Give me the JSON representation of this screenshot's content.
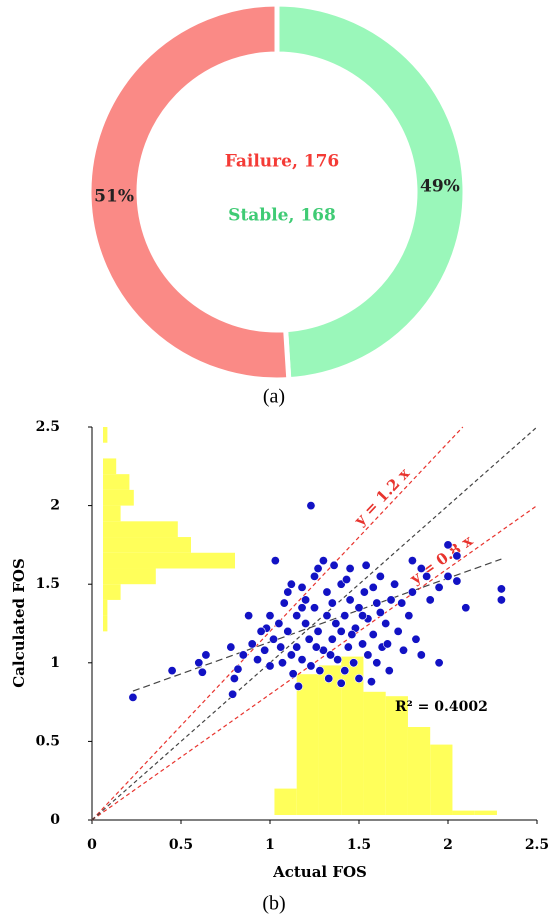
{
  "chart_data": [
    {
      "type": "pie",
      "donut": true,
      "panel_label": "(a)",
      "categories": [
        "Failure",
        "Stable"
      ],
      "values": [
        51,
        49
      ],
      "value_labels": [
        "51%",
        "49%"
      ],
      "colors": [
        "#fa8a86",
        "#9af7ba"
      ],
      "center_labels": [
        "Failure, 176",
        "Stable, 168"
      ],
      "center_label_colors": [
        "#f43b36",
        "#3fcb74"
      ]
    },
    {
      "type": "scatter",
      "panel_label": "(b)",
      "x_label": "Actual FOS",
      "y_label": "Calculated FOS",
      "xlim": [
        0,
        2.5
      ],
      "ylim": [
        0,
        2.5
      ],
      "xticks": [
        0,
        0.5,
        1,
        1.5,
        2,
        2.5
      ],
      "yticks": [
        0,
        0.5,
        1,
        1.5,
        2,
        2.5
      ],
      "color": "#1212c4",
      "x": [
        0.23,
        0.45,
        0.6,
        0.62,
        0.64,
        0.79,
        0.8,
        0.82,
        0.78,
        0.85,
        0.9,
        0.88,
        0.93,
        0.97,
        1.0,
        1.02,
        1.03,
        1.05,
        1.07,
        1.08,
        1.1,
        1.1,
        1.12,
        1.13,
        1.15,
        1.15,
        1.16,
        1.18,
        1.18,
        1.2,
        1.2,
        1.22,
        1.23,
        1.23,
        1.25,
        1.25,
        1.27,
        1.28,
        1.3,
        1.3,
        1.32,
        1.32,
        1.33,
        1.35,
        1.35,
        1.37,
        1.38,
        1.4,
        1.4,
        1.42,
        1.42,
        1.44,
        1.45,
        1.45,
        1.47,
        1.48,
        1.5,
        1.5,
        1.52,
        1.53,
        1.55,
        1.55,
        1.57,
        1.58,
        1.6,
        1.6,
        1.62,
        1.63,
        1.65,
        1.67,
        1.68,
        1.7,
        1.72,
        1.75,
        1.78,
        1.8,
        1.8,
        1.82,
        1.85,
        1.85,
        1.88,
        1.9,
        1.95,
        1.95,
        2.0,
        2.0,
        2.05,
        2.05,
        2.1,
        2.3,
        2.3,
        1.12,
        1.06,
        0.98,
        1.27,
        1.36,
        1.46,
        1.52,
        1.58,
        1.66,
        1.74,
        1.4,
        1.26,
        1.34,
        1.18,
        1.43,
        1.0,
        0.95,
        1.54,
        1.62
      ],
      "values": [
        0.78,
        0.95,
        1.0,
        0.94,
        1.05,
        0.8,
        0.9,
        0.96,
        1.1,
        1.05,
        1.12,
        1.3,
        1.02,
        1.08,
        0.98,
        1.15,
        1.65,
        1.25,
        1.0,
        1.38,
        1.2,
        1.45,
        1.05,
        0.93,
        1.3,
        1.1,
        0.85,
        1.48,
        1.02,
        1.25,
        1.4,
        1.15,
        2.0,
        0.98,
        1.35,
        1.55,
        1.2,
        0.95,
        1.65,
        1.08,
        1.3,
        1.45,
        0.9,
        1.15,
        1.38,
        1.25,
        1.02,
        1.5,
        1.2,
        0.95,
        1.3,
        1.1,
        1.6,
        1.4,
        1.0,
        1.22,
        1.35,
        0.9,
        1.12,
        1.45,
        1.05,
        1.28,
        0.88,
        1.18,
        1.38,
        1.0,
        1.55,
        1.1,
        1.25,
        0.95,
        1.4,
        1.5,
        1.2,
        1.08,
        1.3,
        1.65,
        1.45,
        1.15,
        1.6,
        1.05,
        1.55,
        1.4,
        1.48,
        1.0,
        1.75,
        1.55,
        1.68,
        1.52,
        1.35,
        1.47,
        1.4,
        1.5,
        1.1,
        1.22,
        1.6,
        1.62,
        1.18,
        1.3,
        1.48,
        1.12,
        1.38,
        0.87,
        1.1,
        1.05,
        1.35,
        1.53,
        1.3,
        1.2,
        1.62,
        1.32
      ],
      "ref_lines": [
        {
          "slope": 1.2,
          "label": "y = 1.2 x",
          "color": "#e8342e"
        },
        {
          "slope": 0.8,
          "label": "y = 0.8 x",
          "color": "#e8342e"
        },
        {
          "slope": 1,
          "color": "#444444"
        }
      ],
      "trend": {
        "x": [
          0.23,
          2.3
        ],
        "values": [
          0.82,
          1.66
        ],
        "color": "#444444"
      },
      "annotation": "R² = 0.4002",
      "histograms": [
        {
          "axis": "y",
          "color": "#ffff5a",
          "bins": [
            1.2,
            1.3,
            1.4,
            1.5,
            1.6,
            1.7,
            1.8,
            1.9,
            2.0,
            2.1,
            2.2,
            2.3,
            2.4,
            2.5
          ],
          "counts": [
            1,
            1,
            4,
            12,
            30,
            20,
            17,
            4,
            7,
            6,
            3,
            0,
            1
          ]
        },
        {
          "axis": "x",
          "color": "#ffff5a",
          "bins": [
            1.025,
            1.15,
            1.275,
            1.4,
            1.525,
            1.65,
            1.775,
            1.9,
            2.025,
            2.15,
            2.275,
            2.4
          ],
          "counts": [
            6,
            32,
            34,
            36,
            28,
            27,
            20,
            16,
            1,
            1,
            0
          ]
        }
      ]
    }
  ]
}
